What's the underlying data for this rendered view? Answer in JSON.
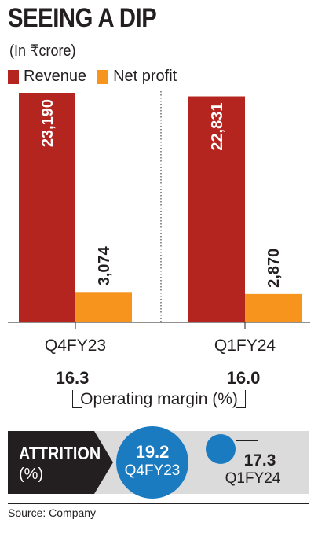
{
  "title": "SEEING A DIP",
  "unit_note": "(In ₹crore)",
  "colors": {
    "revenue": "#b5251f",
    "net_profit": "#f7941d",
    "circle": "#1b7bc0",
    "dark": "#231f20"
  },
  "chart_data": {
    "type": "bar",
    "categories": [
      "Q4FY23",
      "Q1FY24"
    ],
    "series": [
      {
        "name": "Revenue",
        "values": [
          23190,
          22831
        ],
        "labels": [
          "23,190",
          "22,831"
        ]
      },
      {
        "name": "Net profit",
        "values": [
          3074,
          2870
        ],
        "labels": [
          "3,074",
          "2,870"
        ]
      }
    ],
    "ylim": [
      0,
      23190
    ],
    "grid": false,
    "legend": "top-left"
  },
  "operating_margin": {
    "label": "Operating margin (%)",
    "values": [
      "16.3",
      "16.0"
    ]
  },
  "attrition": {
    "label": "ATTRITION",
    "unit": "(%)",
    "current": {
      "value": "19.2",
      "period": "Q4FY23"
    },
    "next": {
      "value": "17.3",
      "period": "Q1FY24"
    }
  },
  "source": "Source: Company"
}
